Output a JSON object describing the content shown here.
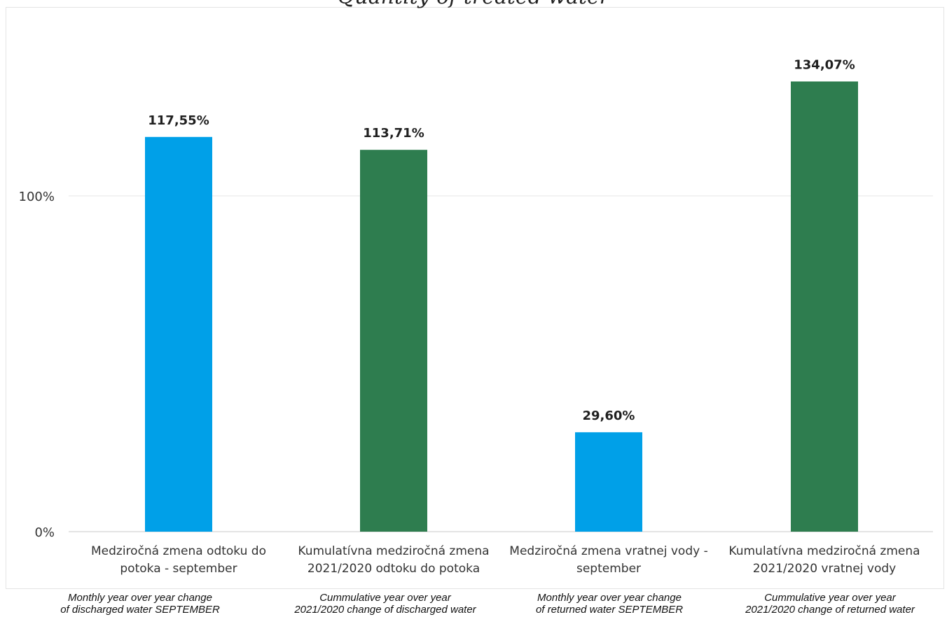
{
  "chart_data": {
    "type": "bar",
    "title": "Quantity of treated water",
    "categories": [
      [
        "Medziročná zmena odtoku do",
        "potoka - september"
      ],
      [
        "Kumulatívna medziročná zmena",
        "2021/2020 odtoku do potoka"
      ],
      [
        "Medziročná zmena vratnej vody -",
        "september"
      ],
      [
        "Kumulatívna medziročná zmena",
        "2021/2020 vratnej vody"
      ]
    ],
    "values": [
      117.55,
      113.71,
      29.6,
      134.07
    ],
    "data_labels": [
      "117,55%",
      "113,71%",
      "29,60%",
      "134,07%"
    ],
    "bar_colors": [
      "#00a0e8",
      "#2e7d4f",
      "#00a0e8",
      "#2e7d4f"
    ],
    "y_ticks": [
      {
        "value": 0,
        "label": "0%"
      },
      {
        "value": 100,
        "label": "100%"
      }
    ],
    "ylim": [
      0,
      140
    ],
    "grid": true,
    "legend": "none"
  },
  "translations": [
    [
      "Monthly year over year change",
      "of discharged water SEPTEMBER"
    ],
    [
      "Cummulative year over year",
      "2021/2020 change of discharged water"
    ],
    [
      "Monthly year over year change",
      "of returned water SEPTEMBER"
    ],
    [
      "Cummulative year over year",
      "2021/2020 change of returned water"
    ]
  ]
}
